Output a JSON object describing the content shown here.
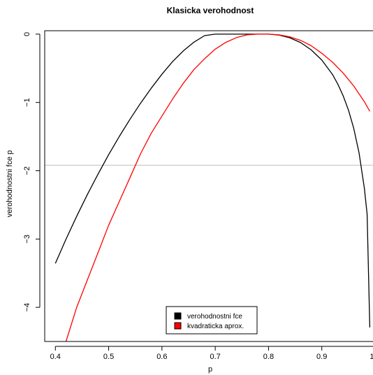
{
  "chart_data": {
    "type": "line",
    "title": "Klasicka verohodnost",
    "xlabel": "p",
    "ylabel": "verohodnostni fce p",
    "xlim": [
      0.38,
      1.0
    ],
    "ylim": [
      -4.5,
      0.05
    ],
    "x_ticks": [
      0.4,
      0.5,
      0.6,
      0.7,
      0.8,
      0.9,
      1.0
    ],
    "x_tick_labels": [
      "0.4",
      "0.5",
      "0.6",
      "0.7",
      "0.8",
      "0.9",
      "1.0"
    ],
    "y_ticks": [
      0,
      -1,
      -2,
      -3,
      -4
    ],
    "y_tick_labels": [
      "0",
      "−1",
      "−2",
      "−3",
      "−4"
    ],
    "grid": false,
    "legend_position": "bottom-center",
    "series": [
      {
        "name": "verohodnostni fce",
        "color": "#000000",
        "x": [
          0.4,
          0.42,
          0.44,
          0.46,
          0.48,
          0.5,
          0.52,
          0.54,
          0.56,
          0.58,
          0.6,
          0.62,
          0.64,
          0.66,
          0.68,
          0.7,
          0.72,
          0.74,
          0.76,
          0.78,
          0.8,
          0.82,
          0.84,
          0.86,
          0.88,
          0.9,
          0.92,
          0.93,
          0.94,
          0.95,
          0.96,
          0.97,
          0.98,
          0.985,
          0.99
        ],
        "y": [
          -3.356,
          -3.002,
          -2.667,
          -2.35,
          -2.05,
          -1.766,
          -1.498,
          -1.246,
          -1.01,
          -0.79,
          -0.587,
          -0.402,
          -0.246,
          -0.118,
          -0.022,
          0.0,
          0.0,
          0.0,
          0.0,
          0.0,
          0.0,
          -0.013,
          -0.053,
          -0.123,
          -0.23,
          -0.379,
          -0.59,
          -0.731,
          -0.901,
          -1.113,
          -1.382,
          -1.742,
          -2.261,
          -2.639,
          -4.294
        ]
      },
      {
        "name": "kvadraticka aprox.",
        "color": "#ff0000",
        "x": [
          0.4,
          0.42,
          0.44,
          0.46,
          0.48,
          0.5,
          0.52,
          0.54,
          0.56,
          0.58,
          0.6,
          0.62,
          0.64,
          0.66,
          0.68,
          0.7,
          0.72,
          0.74,
          0.76,
          0.78,
          0.8,
          0.82,
          0.84,
          0.86,
          0.88,
          0.9,
          0.92,
          0.94,
          0.96,
          0.98,
          0.99
        ],
        "y": [
          -5.0,
          -4.5,
          -4.0,
          -3.6,
          -3.2,
          -2.8,
          -2.45,
          -2.1,
          -1.75,
          -1.45,
          -1.2,
          -0.95,
          -0.72,
          -0.52,
          -0.36,
          -0.22,
          -0.12,
          -0.05,
          -0.01,
          0.0,
          0.0,
          -0.01,
          -0.04,
          -0.09,
          -0.17,
          -0.28,
          -0.41,
          -0.57,
          -0.76,
          -0.99,
          -1.13
        ]
      }
    ],
    "hline": {
      "y": -1.92,
      "color": "#bebebe"
    }
  }
}
